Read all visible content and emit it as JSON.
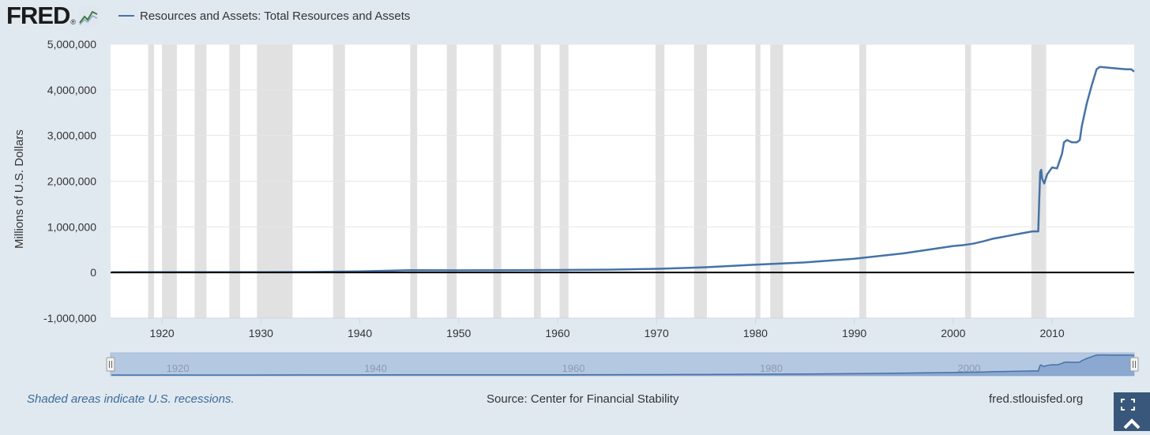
{
  "header": {
    "logo_text": "FRED",
    "logo_reg": "®",
    "legend_label": "Resources and Assets: Total Resources and Assets"
  },
  "colors": {
    "series": "#4572a7",
    "recession": "#e1e1e1",
    "page_bg": "#e1e9f0",
    "plot_bg": "#ffffff",
    "navigator_bg": "#b5c8e2",
    "zero_line": "#000000"
  },
  "footer": {
    "recession_note": "Shaded areas indicate U.S. recessions.",
    "source": "Source: Center for Financial Stability",
    "site": "fred.stlouisfed.org"
  },
  "chart_data": {
    "type": "line",
    "ylabel": "Millions of U.S. Dollars",
    "xlim": [
      1914.8,
      2018.3
    ],
    "ylim": [
      -1000000,
      5000000
    ],
    "x_ticks": [
      1920,
      1930,
      1940,
      1950,
      1960,
      1970,
      1980,
      1990,
      2000,
      2010
    ],
    "x_tick_labels": [
      "1920",
      "1930",
      "1940",
      "1950",
      "1960",
      "1970",
      "1980",
      "1990",
      "2000",
      "2010"
    ],
    "y_ticks": [
      -1000000,
      0,
      1000000,
      2000000,
      3000000,
      4000000,
      5000000
    ],
    "y_tick_labels": [
      "-1,000,000",
      "0",
      "1,000,000",
      "2,000,000",
      "3,000,000",
      "4,000,000",
      "5,000,000"
    ],
    "grid": true,
    "recessions": [
      [
        1918.6,
        1919.2
      ],
      [
        1920.0,
        1921.5
      ],
      [
        1923.3,
        1924.5
      ],
      [
        1926.8,
        1927.9
      ],
      [
        1929.6,
        1933.2
      ],
      [
        1937.3,
        1938.5
      ],
      [
        1945.1,
        1945.8
      ],
      [
        1948.8,
        1949.8
      ],
      [
        1953.5,
        1954.3
      ],
      [
        1957.6,
        1958.3
      ],
      [
        1960.2,
        1961.1
      ],
      [
        1969.9,
        1970.8
      ],
      [
        1973.8,
        1975.1
      ],
      [
        1980.0,
        1980.5
      ],
      [
        1981.5,
        1982.8
      ],
      [
        1990.5,
        1991.2
      ],
      [
        2001.2,
        2001.8
      ],
      [
        2007.9,
        2009.4
      ]
    ],
    "series": [
      {
        "name": "Resources and Assets: Total Resources and Assets",
        "x": [
          1914.9,
          1918,
          1920,
          1925,
          1930,
          1935,
          1940,
          1945,
          1950,
          1955,
          1960,
          1965,
          1970,
          1973,
          1975,
          1980,
          1985,
          1990,
          1995,
          2000,
          2001,
          2002,
          2003,
          2004,
          2005,
          2006,
          2007,
          2008,
          2008.6,
          2008.7,
          2008.8,
          2008.9,
          2009.0,
          2009.2,
          2009.5,
          2010,
          2010.5,
          2011,
          2011.2,
          2011.5,
          2012,
          2012.5,
          2012.8,
          2013,
          2013.5,
          2014,
          2014.5,
          2014.8,
          2015,
          2016,
          2017,
          2017.5,
          2018,
          2018.3
        ],
        "values": [
          5000,
          6000,
          8000,
          7000,
          6000,
          12000,
          25000,
          50000,
          48000,
          52000,
          55000,
          62000,
          80000,
          100000,
          115000,
          170000,
          220000,
          300000,
          420000,
          580000,
          600000,
          630000,
          680000,
          740000,
          780000,
          820000,
          860000,
          900000,
          900000,
          1600000,
          2200000,
          2250000,
          2050000,
          1950000,
          2150000,
          2300000,
          2280000,
          2600000,
          2850000,
          2900000,
          2850000,
          2850000,
          2900000,
          3200000,
          3700000,
          4100000,
          4450000,
          4500000,
          4500000,
          4480000,
          4460000,
          4450000,
          4450000,
          4400000
        ]
      }
    ],
    "navigator": {
      "x_tick_labels": [
        "1920",
        "1940",
        "1960",
        "1980",
        "2000"
      ],
      "x_ticks": [
        1920,
        1940,
        1960,
        1980,
        2000
      ]
    }
  }
}
